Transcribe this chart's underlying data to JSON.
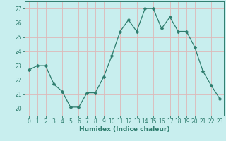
{
  "x": [
    0,
    1,
    2,
    3,
    4,
    5,
    6,
    7,
    8,
    9,
    10,
    11,
    12,
    13,
    14,
    15,
    16,
    17,
    18,
    19,
    20,
    21,
    22,
    23
  ],
  "y": [
    22.7,
    23.0,
    23.0,
    21.7,
    21.2,
    20.1,
    20.1,
    21.1,
    21.1,
    22.2,
    23.7,
    25.4,
    26.2,
    25.4,
    27.0,
    27.0,
    25.6,
    26.4,
    25.4,
    25.4,
    24.3,
    22.6,
    21.6,
    20.7
  ],
  "line_color": "#2e7d6e",
  "marker": "D",
  "marker_size": 2.5,
  "bg_color": "#c8eeee",
  "grid_color": "#deb8b8",
  "axis_color": "#2e7d6e",
  "tick_color": "#2e7d6e",
  "xlabel": "Humidex (Indice chaleur)",
  "ylim": [
    19.5,
    27.5
  ],
  "xlim": [
    -0.5,
    23.5
  ],
  "yticks": [
    20,
    21,
    22,
    23,
    24,
    25,
    26,
    27
  ],
  "xticks": [
    0,
    1,
    2,
    3,
    4,
    5,
    6,
    7,
    8,
    9,
    10,
    11,
    12,
    13,
    14,
    15,
    16,
    17,
    18,
    19,
    20,
    21,
    22,
    23
  ],
  "xlabel_fontsize": 6.5,
  "tick_fontsize": 5.5
}
